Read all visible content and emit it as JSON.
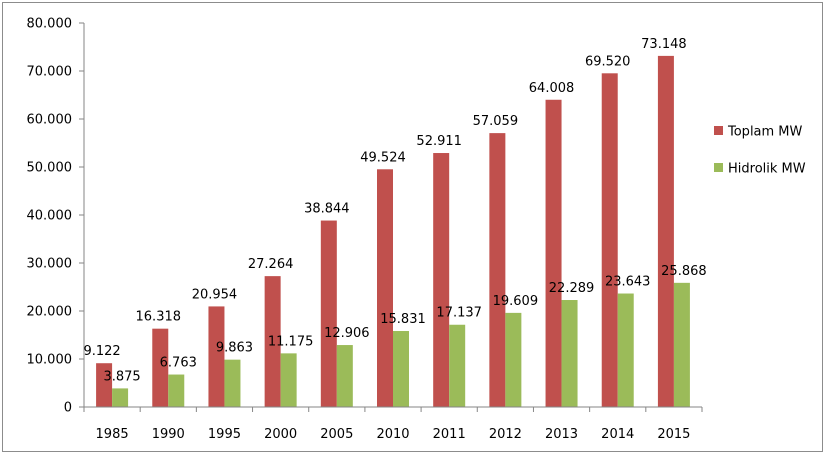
{
  "chart_data": {
    "type": "bar",
    "categories": [
      "1985",
      "1990",
      "1995",
      "2000",
      "2005",
      "2010",
      "2011",
      "2012",
      "2013",
      "2014",
      "2015"
    ],
    "series": [
      {
        "name": "Toplam MW",
        "color": "#c0504d",
        "values": [
          9122,
          16318,
          20954,
          27264,
          38844,
          49524,
          52911,
          57059,
          64008,
          69520,
          73148
        ],
        "labels": [
          "9.122",
          "16.318",
          "20.954",
          "27.264",
          "38.844",
          "49.524",
          "52.911",
          "57.059",
          "64.008",
          "69.520",
          "73.148"
        ]
      },
      {
        "name": "Hidrolik MW",
        "color": "#9bbb59",
        "values": [
          3875,
          6763,
          9863,
          11175,
          12906,
          15831,
          17137,
          19609,
          22289,
          23643,
          25868
        ],
        "labels": [
          "3.875",
          "6.763",
          "9.863",
          "11.175",
          "12.906",
          "15.831",
          "17.137",
          "19.609",
          "22.289",
          "23.643",
          "25.868"
        ]
      }
    ],
    "yticks": [
      0,
      10000,
      20000,
      30000,
      40000,
      50000,
      60000,
      70000,
      80000
    ],
    "ytick_labels": [
      "0",
      "10.000",
      "20.000",
      "30.000",
      "40.000",
      "50.000",
      "60.000",
      "70.000",
      "80.000"
    ],
    "ylim": [
      0,
      80000
    ],
    "title": "",
    "xlabel": "",
    "ylabel": "",
    "grid": false,
    "legend_position": "right"
  }
}
